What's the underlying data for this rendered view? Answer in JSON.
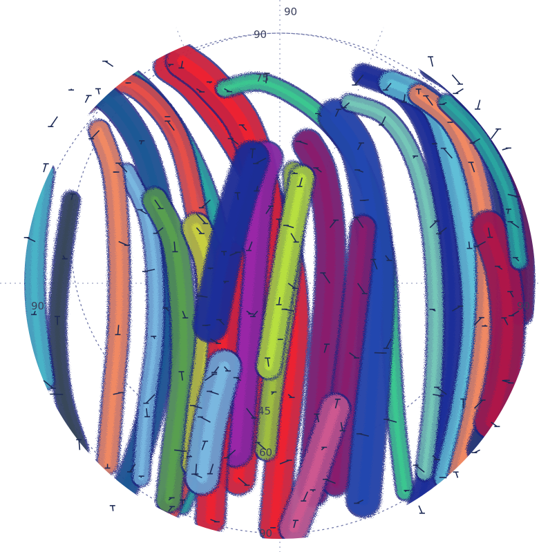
{
  "chart_data": {
    "type": "scatter",
    "projection": "polar",
    "title": "",
    "radial_ticks": [
      "90",
      "75",
      "60",
      "45"
    ],
    "edge_labels": [
      "90",
      "90",
      "90",
      "90"
    ],
    "legend": "none",
    "grid": true,
    "series": [
      {
        "color": "#2aa6a0",
        "points": [
          [
            -75,
            70
          ],
          [
            -60,
            78
          ],
          [
            -40,
            60
          ],
          [
            -25,
            30
          ],
          [
            -20,
            0
          ],
          [
            -22,
            -30
          ],
          [
            -28,
            -60
          ],
          [
            -35,
            -80
          ]
        ]
      },
      {
        "color": "#e8504a",
        "points": [
          [
            -70,
            65
          ],
          [
            -55,
            72
          ],
          [
            -38,
            55
          ],
          [
            -30,
            25
          ],
          [
            -26,
            -5
          ],
          [
            -27,
            -35
          ],
          [
            -32,
            -62
          ],
          [
            -40,
            -82
          ]
        ]
      },
      {
        "color": "#1e5a96",
        "points": [
          [
            -80,
            60
          ],
          [
            -65,
            68
          ],
          [
            -50,
            50
          ],
          [
            -42,
            20
          ],
          [
            -40,
            -10
          ],
          [
            -45,
            -40
          ],
          [
            -52,
            -65
          ],
          [
            -60,
            -82
          ]
        ]
      },
      {
        "color": "#ee2233",
        "points": [
          [
            -40,
            78
          ],
          [
            -30,
            70
          ],
          [
            -15,
            50
          ],
          [
            0,
            20
          ],
          [
            5,
            -10
          ],
          [
            3,
            -40
          ],
          [
            0,
            -65
          ],
          [
            -2,
            -88
          ]
        ]
      },
      {
        "color": "#ee2233",
        "points": [
          [
            -35,
            80
          ],
          [
            -25,
            72
          ],
          [
            -12,
            55
          ],
          [
            -5,
            25
          ],
          [
            -8,
            -10
          ],
          [
            -12,
            -45
          ],
          [
            -15,
            -70
          ]
        ]
      },
      {
        "color": "#3cc890",
        "points": [
          [
            -20,
            70
          ],
          [
            -5,
            72
          ],
          [
            15,
            60
          ],
          [
            30,
            40
          ],
          [
            38,
            10
          ],
          [
            40,
            -20
          ],
          [
            42,
            -50
          ],
          [
            45,
            -75
          ]
        ]
      },
      {
        "color": "#1a2f9a",
        "points": [
          [
            30,
            75
          ],
          [
            45,
            68
          ],
          [
            55,
            50
          ],
          [
            60,
            20
          ],
          [
            62,
            -10
          ],
          [
            60,
            -40
          ],
          [
            55,
            -62
          ],
          [
            50,
            -80
          ]
        ]
      },
      {
        "color": "#62c0d8",
        "points": [
          [
            40,
            72
          ],
          [
            55,
            64
          ],
          [
            62,
            45
          ],
          [
            68,
            15
          ],
          [
            70,
            -15
          ],
          [
            66,
            -45
          ],
          [
            60,
            -70
          ]
        ]
      },
      {
        "color": "#8a1e6e",
        "points": [
          [
            10,
            50
          ],
          [
            15,
            40
          ],
          [
            18,
            20
          ],
          [
            18,
            0
          ],
          [
            16,
            -25
          ],
          [
            14,
            -50
          ],
          [
            12,
            -75
          ]
        ]
      },
      {
        "color": "#9a28a8",
        "points": [
          [
            -5,
            45
          ],
          [
            -8,
            35
          ],
          [
            -10,
            15
          ],
          [
            -12,
            -10
          ],
          [
            -14,
            -35
          ],
          [
            -16,
            -60
          ]
        ]
      },
      {
        "color": "#7ab8e0",
        "points": [
          [
            -55,
            40
          ],
          [
            -48,
            25
          ],
          [
            -45,
            5
          ],
          [
            -45,
            -20
          ],
          [
            -48,
            -45
          ],
          [
            -50,
            -70
          ]
        ]
      },
      {
        "color": "#f28a64",
        "points": [
          [
            -65,
            55
          ],
          [
            -60,
            40
          ],
          [
            -58,
            15
          ],
          [
            -58,
            -15
          ],
          [
            -60,
            -40
          ],
          [
            -62,
            -65
          ]
        ]
      },
      {
        "color": "#5aa050",
        "points": [
          [
            -45,
            30
          ],
          [
            -38,
            15
          ],
          [
            -35,
            -10
          ],
          [
            -35,
            -35
          ],
          [
            -38,
            -60
          ],
          [
            -40,
            -78
          ]
        ]
      },
      {
        "color": "#c8d040",
        "points": [
          [
            -30,
            20
          ],
          [
            -25,
            5
          ],
          [
            -25,
            -20
          ],
          [
            -28,
            -45
          ],
          [
            -30,
            -65
          ]
        ]
      },
      {
        "color": "#2248b0",
        "points": [
          [
            20,
            60
          ],
          [
            28,
            48
          ],
          [
            32,
            30
          ],
          [
            35,
            5
          ],
          [
            34,
            -25
          ],
          [
            32,
            -55
          ],
          [
            30,
            -78
          ]
        ]
      },
      {
        "color": "#76c8b8",
        "points": [
          [
            25,
            65
          ],
          [
            38,
            60
          ],
          [
            48,
            45
          ],
          [
            54,
            20
          ],
          [
            56,
            -10
          ],
          [
            55,
            -40
          ],
          [
            52,
            -68
          ]
        ]
      },
      {
        "color": "#f28a64",
        "points": [
          [
            50,
            68
          ],
          [
            62,
            58
          ],
          [
            70,
            40
          ],
          [
            74,
            15
          ],
          [
            74,
            -15
          ],
          [
            70,
            -45
          ],
          [
            64,
            -70
          ]
        ]
      },
      {
        "color": "#283c78",
        "points": [
          [
            55,
            78
          ],
          [
            66,
            70
          ],
          [
            76,
            52
          ],
          [
            82,
            25
          ],
          [
            84,
            -5
          ],
          [
            80,
            -35
          ],
          [
            72,
            -60
          ]
        ]
      },
      {
        "color": "#6a1a5a",
        "points": [
          [
            62,
            75
          ],
          [
            72,
            66
          ],
          [
            80,
            48
          ],
          [
            86,
            20
          ],
          [
            86,
            -10
          ]
        ]
      },
      {
        "color": "#b01848",
        "points": [
          [
            75,
            20
          ],
          [
            80,
            5
          ],
          [
            82,
            -15
          ],
          [
            80,
            -35
          ],
          [
            76,
            -50
          ]
        ]
      },
      {
        "color": "#2aa6a0",
        "points": [
          [
            60,
            65
          ],
          [
            72,
            52
          ],
          [
            82,
            32
          ],
          [
            86,
            8
          ]
        ]
      },
      {
        "color": "#a0c040",
        "points": [
          [
            5,
            40
          ],
          [
            5,
            20
          ],
          [
            3,
            0
          ],
          [
            0,
            -20
          ],
          [
            -3,
            -40
          ],
          [
            -5,
            -60
          ]
        ]
      },
      {
        "color": "#b8e040",
        "points": [
          [
            8,
            38
          ],
          [
            4,
            18
          ],
          [
            0,
            -5
          ],
          [
            -4,
            -30
          ]
        ]
      },
      {
        "color": "#ee2233",
        "points": [
          [
            -18,
            10
          ],
          [
            -20,
            -15
          ],
          [
            -22,
            -40
          ],
          [
            -24,
            -65
          ],
          [
            -25,
            -85
          ]
        ]
      },
      {
        "color": "#1a2f9a",
        "points": [
          [
            -10,
            45
          ],
          [
            -15,
            30
          ],
          [
            -20,
            10
          ],
          [
            -25,
            -15
          ]
        ]
      },
      {
        "color": "#38485a",
        "points": [
          [
            -75,
            30
          ],
          [
            -78,
            10
          ],
          [
            -80,
            -15
          ],
          [
            -78,
            -40
          ],
          [
            -72,
            -60
          ]
        ]
      },
      {
        "color": "#4ab4c8",
        "points": [
          [
            -85,
            40
          ],
          [
            -88,
            15
          ],
          [
            -88,
            -10
          ],
          [
            -85,
            -35
          ]
        ]
      },
      {
        "color": "#8a1e6e",
        "points": [
          [
            30,
            20
          ],
          [
            28,
            0
          ],
          [
            25,
            -25
          ],
          [
            22,
            -50
          ],
          [
            20,
            -72
          ]
        ]
      },
      {
        "color": "#cf5a90",
        "points": [
          [
            20,
            -45
          ],
          [
            15,
            -60
          ],
          [
            10,
            -75
          ],
          [
            5,
            -88
          ]
        ]
      },
      {
        "color": "#7ab8e0",
        "points": [
          [
            -20,
            -30
          ],
          [
            -25,
            -50
          ],
          [
            -28,
            -70
          ]
        ]
      }
    ]
  }
}
